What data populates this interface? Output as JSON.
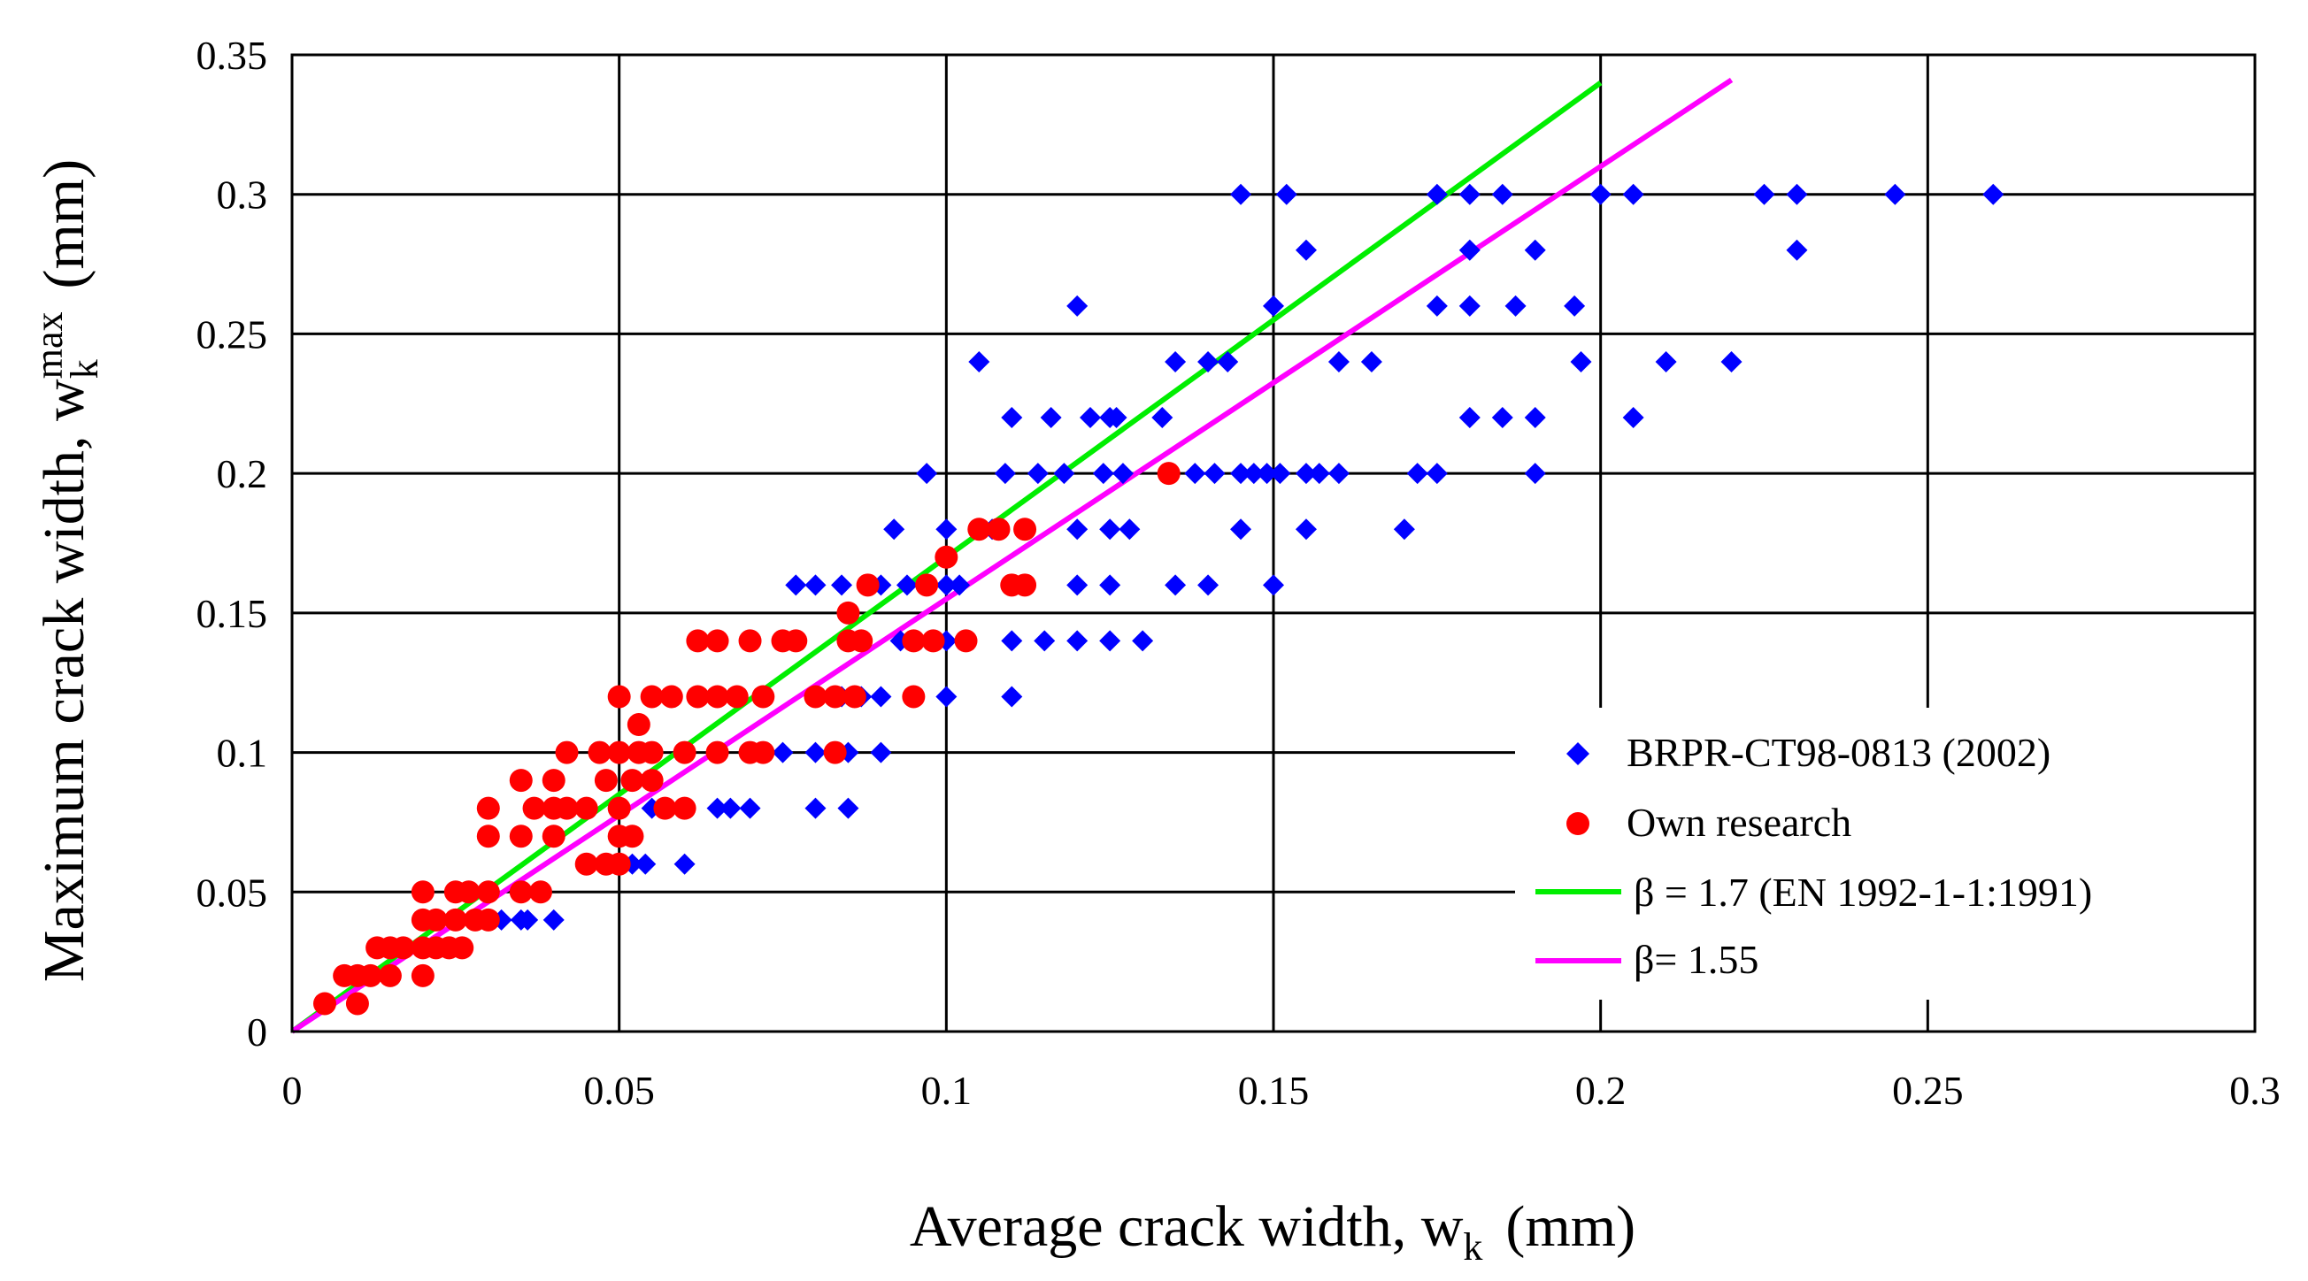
{
  "chart_data": {
    "type": "scatter",
    "title": "",
    "xlabel": "Average crack width, w",
    "xlabel_sub": "k",
    "xlabel_unit": "(mm)",
    "ylabel": "Maximum crack width, w",
    "ylabel_sub": "k",
    "ylabel_sup": "max",
    "ylabel_unit": "(mm)",
    "xlim": [
      0,
      0.3
    ],
    "ylim": [
      0,
      0.35
    ],
    "grid": true,
    "legend_position": "bottom-right",
    "x_ticks": [
      "0",
      "0.05",
      "0.1",
      "0.15",
      "0.2",
      "0.25",
      "0.3"
    ],
    "y_ticks": [
      "0",
      "0.05",
      "0.1",
      "0.15",
      "0.2",
      "0.25",
      "0.3",
      "0.35"
    ],
    "series": [
      {
        "name": "BRPR-CT98-0813 (2002)",
        "kind": "scatter",
        "marker": "diamond",
        "color": "#0000ff",
        "points": [
          [
            0.145,
            0.3
          ],
          [
            0.152,
            0.3
          ],
          [
            0.175,
            0.3
          ],
          [
            0.18,
            0.3
          ],
          [
            0.185,
            0.3
          ],
          [
            0.2,
            0.3
          ],
          [
            0.205,
            0.3
          ],
          [
            0.225,
            0.3
          ],
          [
            0.23,
            0.3
          ],
          [
            0.245,
            0.3
          ],
          [
            0.26,
            0.3
          ],
          [
            0.155,
            0.28
          ],
          [
            0.18,
            0.28
          ],
          [
            0.19,
            0.28
          ],
          [
            0.23,
            0.28
          ],
          [
            0.12,
            0.26
          ],
          [
            0.15,
            0.26
          ],
          [
            0.175,
            0.26
          ],
          [
            0.18,
            0.26
          ],
          [
            0.187,
            0.26
          ],
          [
            0.196,
            0.26
          ],
          [
            0.105,
            0.24
          ],
          [
            0.135,
            0.24
          ],
          [
            0.14,
            0.24
          ],
          [
            0.143,
            0.24
          ],
          [
            0.16,
            0.24
          ],
          [
            0.165,
            0.24
          ],
          [
            0.197,
            0.24
          ],
          [
            0.21,
            0.24
          ],
          [
            0.22,
            0.24
          ],
          [
            0.11,
            0.22
          ],
          [
            0.116,
            0.22
          ],
          [
            0.122,
            0.22
          ],
          [
            0.125,
            0.22
          ],
          [
            0.126,
            0.22
          ],
          [
            0.133,
            0.22
          ],
          [
            0.18,
            0.22
          ],
          [
            0.185,
            0.22
          ],
          [
            0.19,
            0.22
          ],
          [
            0.205,
            0.22
          ],
          [
            0.097,
            0.2
          ],
          [
            0.109,
            0.2
          ],
          [
            0.114,
            0.2
          ],
          [
            0.118,
            0.2
          ],
          [
            0.124,
            0.2
          ],
          [
            0.127,
            0.2
          ],
          [
            0.138,
            0.2
          ],
          [
            0.141,
            0.2
          ],
          [
            0.145,
            0.2
          ],
          [
            0.147,
            0.2
          ],
          [
            0.149,
            0.2
          ],
          [
            0.151,
            0.2
          ],
          [
            0.155,
            0.2
          ],
          [
            0.157,
            0.2
          ],
          [
            0.16,
            0.2
          ],
          [
            0.172,
            0.2
          ],
          [
            0.175,
            0.2
          ],
          [
            0.19,
            0.2
          ],
          [
            0.092,
            0.18
          ],
          [
            0.1,
            0.18
          ],
          [
            0.107,
            0.18
          ],
          [
            0.112,
            0.18
          ],
          [
            0.12,
            0.18
          ],
          [
            0.125,
            0.18
          ],
          [
            0.128,
            0.18
          ],
          [
            0.145,
            0.18
          ],
          [
            0.155,
            0.18
          ],
          [
            0.17,
            0.18
          ],
          [
            0.077,
            0.16
          ],
          [
            0.08,
            0.16
          ],
          [
            0.084,
            0.16
          ],
          [
            0.09,
            0.16
          ],
          [
            0.094,
            0.16
          ],
          [
            0.1,
            0.16
          ],
          [
            0.102,
            0.16
          ],
          [
            0.112,
            0.16
          ],
          [
            0.12,
            0.16
          ],
          [
            0.125,
            0.16
          ],
          [
            0.135,
            0.16
          ],
          [
            0.14,
            0.16
          ],
          [
            0.15,
            0.16
          ],
          [
            0.087,
            0.14
          ],
          [
            0.093,
            0.14
          ],
          [
            0.1,
            0.14
          ],
          [
            0.11,
            0.14
          ],
          [
            0.115,
            0.14
          ],
          [
            0.12,
            0.14
          ],
          [
            0.125,
            0.14
          ],
          [
            0.13,
            0.14
          ],
          [
            0.08,
            0.12
          ],
          [
            0.084,
            0.12
          ],
          [
            0.087,
            0.12
          ],
          [
            0.09,
            0.12
          ],
          [
            0.1,
            0.12
          ],
          [
            0.11,
            0.12
          ],
          [
            0.06,
            0.1
          ],
          [
            0.065,
            0.1
          ],
          [
            0.07,
            0.1
          ],
          [
            0.075,
            0.1
          ],
          [
            0.08,
            0.1
          ],
          [
            0.085,
            0.1
          ],
          [
            0.09,
            0.1
          ],
          [
            0.05,
            0.08
          ],
          [
            0.055,
            0.08
          ],
          [
            0.06,
            0.08
          ],
          [
            0.065,
            0.08
          ],
          [
            0.067,
            0.08
          ],
          [
            0.07,
            0.08
          ],
          [
            0.08,
            0.08
          ],
          [
            0.085,
            0.08
          ],
          [
            0.045,
            0.06
          ],
          [
            0.048,
            0.06
          ],
          [
            0.052,
            0.06
          ],
          [
            0.054,
            0.06
          ],
          [
            0.06,
            0.06
          ],
          [
            0.03,
            0.04
          ],
          [
            0.032,
            0.04
          ],
          [
            0.035,
            0.04
          ],
          [
            0.036,
            0.04
          ],
          [
            0.04,
            0.04
          ]
        ]
      },
      {
        "name": "Own research",
        "kind": "scatter",
        "marker": "circle",
        "color": "#ff0000",
        "points": [
          [
            0.005,
            0.01
          ],
          [
            0.01,
            0.01
          ],
          [
            0.008,
            0.02
          ],
          [
            0.01,
            0.02
          ],
          [
            0.012,
            0.02
          ],
          [
            0.015,
            0.02
          ],
          [
            0.02,
            0.02
          ],
          [
            0.013,
            0.03
          ],
          [
            0.015,
            0.03
          ],
          [
            0.017,
            0.03
          ],
          [
            0.02,
            0.03
          ],
          [
            0.022,
            0.03
          ],
          [
            0.024,
            0.03
          ],
          [
            0.026,
            0.03
          ],
          [
            0.02,
            0.04
          ],
          [
            0.022,
            0.04
          ],
          [
            0.025,
            0.04
          ],
          [
            0.028,
            0.04
          ],
          [
            0.03,
            0.04
          ],
          [
            0.02,
            0.05
          ],
          [
            0.025,
            0.05
          ],
          [
            0.027,
            0.05
          ],
          [
            0.03,
            0.05
          ],
          [
            0.035,
            0.05
          ],
          [
            0.038,
            0.05
          ],
          [
            0.03,
            0.07
          ],
          [
            0.035,
            0.07
          ],
          [
            0.04,
            0.07
          ],
          [
            0.045,
            0.06
          ],
          [
            0.048,
            0.06
          ],
          [
            0.05,
            0.06
          ],
          [
            0.05,
            0.07
          ],
          [
            0.052,
            0.07
          ],
          [
            0.03,
            0.08
          ],
          [
            0.037,
            0.08
          ],
          [
            0.04,
            0.08
          ],
          [
            0.042,
            0.08
          ],
          [
            0.045,
            0.08
          ],
          [
            0.05,
            0.08
          ],
          [
            0.057,
            0.08
          ],
          [
            0.06,
            0.08
          ],
          [
            0.035,
            0.09
          ],
          [
            0.04,
            0.09
          ],
          [
            0.048,
            0.09
          ],
          [
            0.052,
            0.09
          ],
          [
            0.055,
            0.09
          ],
          [
            0.042,
            0.1
          ],
          [
            0.047,
            0.1
          ],
          [
            0.05,
            0.1
          ],
          [
            0.053,
            0.1
          ],
          [
            0.055,
            0.1
          ],
          [
            0.06,
            0.1
          ],
          [
            0.065,
            0.1
          ],
          [
            0.07,
            0.1
          ],
          [
            0.072,
            0.1
          ],
          [
            0.083,
            0.1
          ],
          [
            0.053,
            0.11
          ],
          [
            0.05,
            0.12
          ],
          [
            0.055,
            0.12
          ],
          [
            0.058,
            0.12
          ],
          [
            0.062,
            0.12
          ],
          [
            0.065,
            0.12
          ],
          [
            0.068,
            0.12
          ],
          [
            0.072,
            0.12
          ],
          [
            0.08,
            0.12
          ],
          [
            0.083,
            0.12
          ],
          [
            0.086,
            0.12
          ],
          [
            0.095,
            0.12
          ],
          [
            0.062,
            0.14
          ],
          [
            0.065,
            0.14
          ],
          [
            0.07,
            0.14
          ],
          [
            0.075,
            0.14
          ],
          [
            0.077,
            0.14
          ],
          [
            0.085,
            0.14
          ],
          [
            0.087,
            0.14
          ],
          [
            0.095,
            0.14
          ],
          [
            0.098,
            0.14
          ],
          [
            0.103,
            0.14
          ],
          [
            0.085,
            0.15
          ],
          [
            0.088,
            0.16
          ],
          [
            0.097,
            0.16
          ],
          [
            0.11,
            0.16
          ],
          [
            0.112,
            0.16
          ],
          [
            0.1,
            0.17
          ],
          [
            0.105,
            0.18
          ],
          [
            0.108,
            0.18
          ],
          [
            0.112,
            0.18
          ],
          [
            0.134,
            0.2
          ]
        ]
      },
      {
        "name": "β = 1.7 (EN 1992-1-1:1991)",
        "kind": "line",
        "color": "#00ee00",
        "x": [
          0,
          0.2
        ],
        "y": [
          0,
          0.34
        ]
      },
      {
        "name": "β= 1.55",
        "kind": "line",
        "color": "#ff00ff",
        "x": [
          0,
          0.22
        ],
        "y": [
          0,
          0.341
        ]
      }
    ]
  }
}
